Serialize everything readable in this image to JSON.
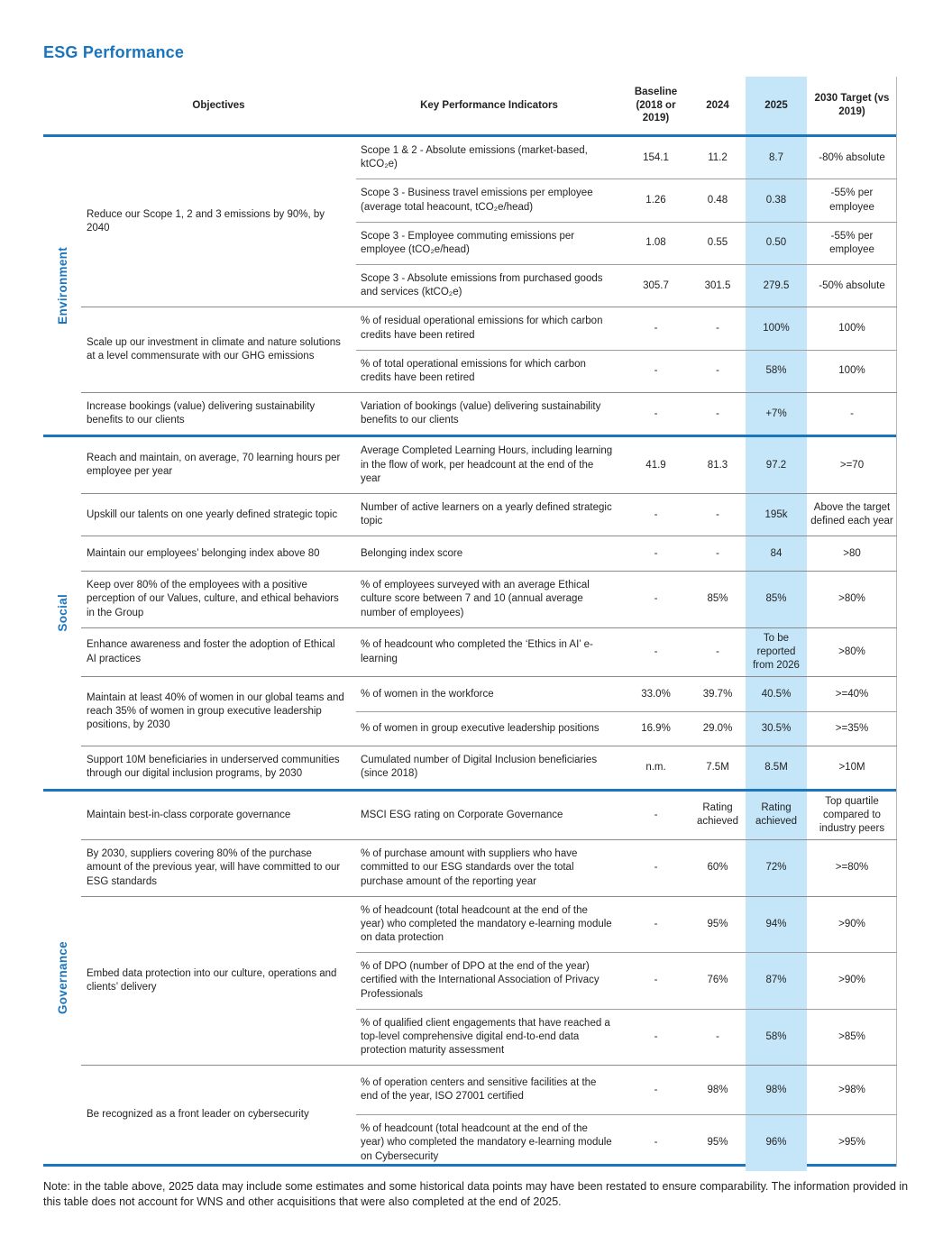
{
  "theme": {
    "accent_color": "#1b75bc",
    "highlight_color": "#c4e6f8"
  },
  "page": {
    "title": "ESG Performance",
    "note": "Note: in the table above, 2025 data may include some estimates and some historical data points may have been restated to ensure comparability. The information provided in this table does not account for WNS and other acquisitions that were also completed at the end of 2025."
  },
  "table": {
    "columns": {
      "objectives": "Objectives",
      "kpi": "Key Performance Indicators",
      "baseline": "Baseline (2018 or 2019)",
      "y2024": "2024",
      "y2025": "2025",
      "target": "2030 Target (vs 2019)"
    },
    "sections": [
      {
        "label": "Environment",
        "objectives": [
          {
            "text": "Reduce our Scope 1, 2 and 3 emissions by 90%, by 2040",
            "kpis": [
              {
                "kpi": "Scope 1 & 2 - Absolute emissions (market-based, ktCO₂e)",
                "baseline": "154.1",
                "y2024": "11.2",
                "y2025": "8.7",
                "target": "-80% absolute"
              },
              {
                "kpi": "Scope 3 - Business travel emissions per employee (average total heacount, tCO₂e/head)",
                "baseline": "1.26",
                "y2024": "0.48",
                "y2025": "0.38",
                "target": "-55% per employee"
              },
              {
                "kpi": "Scope 3 - Employee commuting emissions per employee (tCO₂e/head)",
                "baseline": "1.08",
                "y2024": "0.55",
                "y2025": "0.50",
                "target": "-55% per employee"
              },
              {
                "kpi": "Scope 3 - Absolute emissions from purchased goods and services (ktCO₂e)",
                "baseline": "305.7",
                "y2024": "301.5",
                "y2025": "279.5",
                "target": "-50% absolute"
              }
            ]
          },
          {
            "text": "Scale up our investment in climate and nature solutions at a level commensurate with our GHG emissions",
            "kpis": [
              {
                "kpi": "% of residual operational emissions for which carbon credits have been retired",
                "baseline": "-",
                "y2024": "-",
                "y2025": "100%",
                "target": "100%"
              },
              {
                "kpi": "% of total operational emissions for which carbon credits have been retired",
                "baseline": "-",
                "y2024": "-",
                "y2025": "58%",
                "target": "100%"
              }
            ]
          },
          {
            "text": "Increase bookings (value) delivering sustainability benefits to our clients",
            "kpis": [
              {
                "kpi": "Variation of bookings (value) delivering sustainability benefits to our clients",
                "baseline": "-",
                "y2024": "-",
                "y2025": "+7%",
                "target": "-"
              }
            ]
          }
        ]
      },
      {
        "label": "Social",
        "objectives": [
          {
            "text": "Reach and maintain, on average, 70 learning hours per employee per year",
            "kpis": [
              {
                "kpi": "Average Completed Learning Hours, including learning in the flow of work, per headcount at the end of the year",
                "baseline": "41.9",
                "y2024": "81.3",
                "y2025": "97.2",
                "target": ">=70"
              }
            ]
          },
          {
            "text": "Upskill our talents on one yearly defined strategic topic",
            "kpis": [
              {
                "kpi": "Number of active learners on a yearly defined strategic topic",
                "baseline": "-",
                "y2024": "-",
                "y2025": "195k",
                "target": "Above the target defined each year"
              }
            ]
          },
          {
            "text": "Maintain our employees’ belonging index above 80",
            "kpis": [
              {
                "kpi": "Belonging index score",
                "baseline": "-",
                "y2024": "-",
                "y2025": "84",
                "target": ">80"
              }
            ]
          },
          {
            "text": "Keep over 80% of the employees with a positive perception of our Values, culture, and ethical behaviors in the Group",
            "kpis": [
              {
                "kpi": "% of employees surveyed with an average Ethical culture score between 7 and 10 (annual average number of employees)",
                "baseline": "-",
                "y2024": "85%",
                "y2025": "85%",
                "target": ">80%"
              }
            ]
          },
          {
            "text": "Enhance awareness and foster the adoption of Ethical AI practices",
            "kpis": [
              {
                "kpi": "% of headcount who completed the ‘Ethics in AI’ e-learning",
                "baseline": "-",
                "y2024": "-",
                "y2025": "To be reported from 2026",
                "target": ">80%"
              }
            ]
          },
          {
            "text": "Maintain at least 40% of women in our global teams and reach 35% of women in group executive leadership positions, by 2030",
            "kpis": [
              {
                "kpi": "% of women in the workforce",
                "baseline": "33.0%",
                "y2024": "39.7%",
                "y2025": "40.5%",
                "target": ">=40%"
              },
              {
                "kpi": "% of women in group executive leadership positions",
                "baseline": "16.9%",
                "y2024": "29.0%",
                "y2025": "30.5%",
                "target": ">=35%"
              }
            ]
          },
          {
            "text": "Support 10M beneficiaries in underserved communities through our digital inclusion programs, by 2030",
            "kpis": [
              {
                "kpi": "Cumulated number of Digital Inclusion beneficiaries (since 2018)",
                "baseline": "n.m.",
                "y2024": "7.5M",
                "y2025": "8.5M",
                "target": ">10M"
              }
            ]
          }
        ]
      },
      {
        "label": "Governance",
        "objectives": [
          {
            "text": "Maintain best-in-class corporate governance",
            "kpis": [
              {
                "kpi": "MSCI ESG rating on Corporate Governance",
                "baseline": "-",
                "y2024": "Rating achieved",
                "y2025": "Rating achieved",
                "target": "Top quartile compared to industry peers"
              }
            ]
          },
          {
            "text": "By 2030, suppliers covering 80% of the purchase amount of the previous year, will have committed to our ESG standards",
            "kpis": [
              {
                "kpi": "% of purchase amount with suppliers who have committed to our ESG standards over the total purchase amount of the reporting year",
                "baseline": "-",
                "y2024": "60%",
                "y2025": "72%",
                "target": ">=80%"
              }
            ]
          },
          {
            "text": "Embed data protection into our culture, operations and clients’ delivery",
            "kpis": [
              {
                "kpi": "% of headcount (total headcount at the end of the year) who completed the mandatory e-learning module on data protection",
                "baseline": "-",
                "y2024": "95%",
                "y2025": "94%",
                "target": ">90%"
              },
              {
                "kpi": "% of DPO (number of DPO at the end of the year) certified with the International Association of Privacy Professionals",
                "baseline": "-",
                "y2024": "76%",
                "y2025": "87%",
                "target": ">90%"
              },
              {
                "kpi": "% of qualified client engagements that have reached a top-level comprehensive digital end-to-end data protection maturity assessment",
                "baseline": "-",
                "y2024": "-",
                "y2025": "58%",
                "target": ">85%"
              }
            ]
          },
          {
            "text": "Be recognized as a front leader on cybersecurity",
            "kpis": [
              {
                "kpi": "% of operation centers and sensitive facilities at the end of the year, ISO 27001 certified",
                "baseline": "-",
                "y2024": "98%",
                "y2025": "98%",
                "target": ">98%"
              },
              {
                "kpi": "% of headcount (total headcount at the end of the year) who completed the mandatory e-learning module on Cybersecurity",
                "baseline": "-",
                "y2024": "95%",
                "y2025": "96%",
                "target": ">95%"
              }
            ]
          }
        ]
      }
    ]
  }
}
